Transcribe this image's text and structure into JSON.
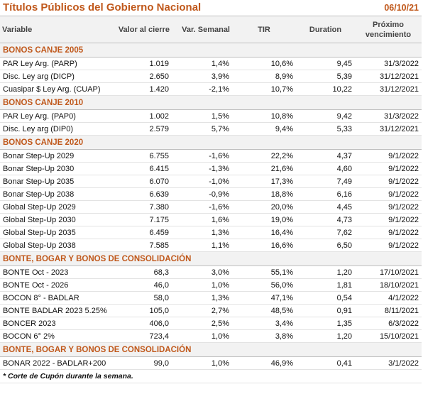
{
  "header": {
    "title": "Títulos Públicos del Gobierno Nacional",
    "date": "06/10/21"
  },
  "table": {
    "columns": [
      "Variable",
      "Valor al cierre",
      "Var. Semanal",
      "TIR",
      "Duration",
      "Próximo vencimiento"
    ],
    "sections": [
      {
        "title": "BONOS CANJE 2005",
        "rows": [
          [
            "PAR Ley Arg. (PARP)",
            "1.019",
            "1,4%",
            "10,6%",
            "9,45",
            "31/3/2022"
          ],
          [
            "Disc. Ley arg (DICP)",
            "2.650",
            "3,9%",
            "8,9%",
            "5,39",
            "31/12/2021"
          ],
          [
            "Cuasipar $ Ley Arg. (CUAP)",
            "1.420",
            "-2,1%",
            "10,7%",
            "10,22",
            "31/12/2021"
          ]
        ]
      },
      {
        "title": "BONOS CANJE 2010",
        "rows": [
          [
            "PAR Ley Arg. (PAP0)",
            "1.002",
            "1,5%",
            "10,8%",
            "9,42",
            "31/3/2022"
          ],
          [
            "Disc. Ley arg (DIP0)",
            "2.579",
            "5,7%",
            "9,4%",
            "5,33",
            "31/12/2021"
          ]
        ]
      },
      {
        "title": "BONOS CANJE 2020",
        "rows": [
          [
            "Bonar Step-Up 2029",
            "6.755",
            "-1,6%",
            "22,2%",
            "4,37",
            "9/1/2022"
          ],
          [
            "Bonar Step-Up 2030",
            "6.415",
            "-1,3%",
            "21,6%",
            "4,60",
            "9/1/2022"
          ],
          [
            "Bonar Step-Up 2035",
            "6.070",
            "-1,0%",
            "17,3%",
            "7,49",
            "9/1/2022"
          ],
          [
            "Bonar Step-Up 2038",
            "6.639",
            "-0,9%",
            "18,8%",
            "6,16",
            "9/1/2022"
          ],
          [
            "Global Step-Up 2029",
            "7.380",
            "-1,6%",
            "20,0%",
            "4,45",
            "9/1/2022"
          ],
          [
            "Global Step-Up 2030",
            "7.175",
            "1,6%",
            "19,0%",
            "4,73",
            "9/1/2022"
          ],
          [
            "Global Step-Up 2035",
            "6.459",
            "1,3%",
            "16,4%",
            "7,62",
            "9/1/2022"
          ],
          [
            "Global Step-Up 2038",
            "7.585",
            "1,1%",
            "16,6%",
            "6,50",
            "9/1/2022"
          ]
        ]
      },
      {
        "title": "BONTE, BOGAR Y BONOS DE CONSOLIDACIÓN",
        "rows": [
          [
            "BONTE Oct - 2023",
            "68,3",
            "3,0%",
            "55,1%",
            "1,20",
            "17/10/2021"
          ],
          [
            "BONTE Oct - 2026",
            "46,0",
            "1,0%",
            "56,0%",
            "1,81",
            "18/10/2021"
          ],
          [
            "BOCON 8° - BADLAR",
            "58,0",
            "1,3%",
            "47,1%",
            "0,54",
            "4/1/2022"
          ],
          [
            "BONTE BADLAR 2023 5.25%",
            "105,0",
            "2,7%",
            "48,5%",
            "0,91",
            "8/11/2021"
          ],
          [
            "BONCER 2023",
            "406,0",
            "2,5%",
            "3,4%",
            "1,35",
            "6/3/2022"
          ],
          [
            "BOCON 6° 2%",
            "723,4",
            "1,0%",
            "3,8%",
            "1,20",
            "15/10/2021"
          ]
        ]
      },
      {
        "title": "BONTE, BOGAR Y BONOS DE CONSOLIDACIÓN",
        "rows": [
          [
            "BONAR 2022 - BADLAR+200",
            "99,0",
            "1,0%",
            "46,9%",
            "0,41",
            "3/1/2022"
          ]
        ]
      }
    ]
  },
  "footnote": "* Corte de Cupón durante la semana."
}
